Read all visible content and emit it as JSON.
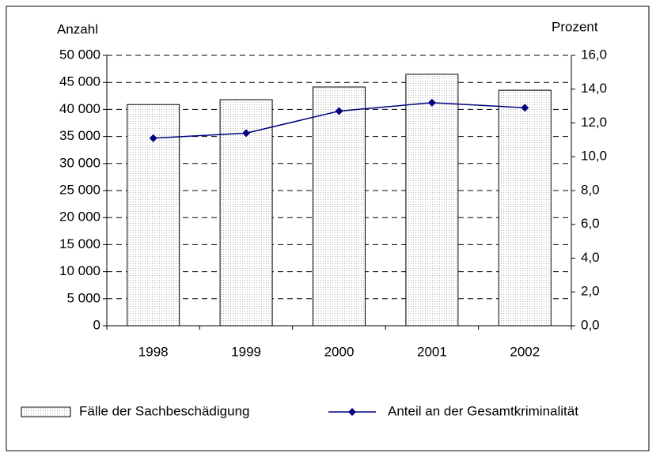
{
  "chart_data": {
    "type": "bar",
    "y_label": "Anzahl",
    "y2_label": "Prozent",
    "categories": [
      "1998",
      "1999",
      "2000",
      "2001",
      "2002"
    ],
    "series": [
      {
        "name": "Fälle der Sachbeschädigung",
        "type": "bar",
        "color": "#b0b0b0",
        "values": [
          40900,
          41800,
          44150,
          46500,
          43550
        ]
      },
      {
        "name": "Anteil an der Gesamtkriminalität",
        "type": "line",
        "axis": "y2",
        "color": "#000080",
        "values": [
          11.1,
          11.4,
          12.7,
          13.2,
          12.9
        ]
      }
    ],
    "ylim": [
      0,
      50000
    ],
    "yticks": [
      0,
      {
        "value": 5000,
        "label": "5 000"
      },
      {
        "value": 10000,
        "label": "10 000"
      },
      {
        "value": 15000,
        "label": "15 000"
      },
      {
        "value": 20000,
        "label": "20 000"
      },
      {
        "value": 25000,
        "label": "25 000"
      },
      {
        "value": 30000,
        "label": "30 000"
      },
      {
        "value": 35000,
        "label": "35 000"
      },
      {
        "value": 40000,
        "label": "40 000"
      },
      {
        "value": 45000,
        "label": "45 000"
      },
      {
        "value": 50000,
        "label": "50 000"
      }
    ],
    "y2lim": [
      0,
      16
    ],
    "y2ticks": [
      {
        "value": 0,
        "label": "0,0"
      },
      {
        "value": 2,
        "label": "2,0"
      },
      {
        "value": 4,
        "label": "4,0"
      },
      {
        "value": 6,
        "label": "6,0"
      },
      {
        "value": 8,
        "label": "8,0"
      },
      {
        "value": 10,
        "label": "10,0"
      },
      {
        "value": 12,
        "label": "12,0"
      },
      {
        "value": 14,
        "label": "14,0"
      },
      {
        "value": 16,
        "label": "16,0"
      }
    ],
    "grid": true,
    "legend": "bottom"
  }
}
